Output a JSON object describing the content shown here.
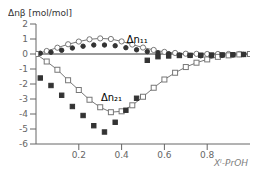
{
  "chart_data": {
    "type": "line",
    "y_label": "Δnβ [mol/mol]",
    "x_label": "Xᴵ-PrOH",
    "xlim": [
      0,
      1
    ],
    "ylim": [
      -6,
      2
    ],
    "xticks": [
      0.2,
      0.4,
      0.6,
      0.8
    ],
    "yticks": [
      -6,
      -5,
      -4,
      -3,
      -2,
      -1,
      0,
      1,
      2
    ],
    "grid": false,
    "hlines": [
      0
    ],
    "annotations": [
      {
        "text": "Δn₁₁",
        "x": 0.4,
        "y": 1.0
      },
      {
        "text": "Δn₂₁",
        "x": 0.28,
        "y": -2.9
      }
    ],
    "series": [
      {
        "type": "line",
        "marker": "open_circle",
        "color": "#777777",
        "x": [
          0.0,
          0.05,
          0.1,
          0.15,
          0.2,
          0.25,
          0.3,
          0.35,
          0.4,
          0.45,
          0.5,
          0.55,
          0.6,
          0.65,
          0.7,
          0.75,
          0.8,
          0.85,
          0.9,
          0.95,
          1.0
        ],
        "values": [
          0.0,
          0.2,
          0.42,
          0.65,
          0.83,
          0.98,
          1.04,
          1.0,
          0.84,
          0.63,
          0.43,
          0.27,
          0.14,
          0.07,
          0.02,
          0.01,
          0.0,
          0.0,
          0.0,
          0.0,
          0.0
        ]
      },
      {
        "type": "scatter",
        "marker": "circle",
        "color": "#333333",
        "x": [
          0.02,
          0.07,
          0.12,
          0.17,
          0.22,
          0.27,
          0.32,
          0.37,
          0.42,
          0.47,
          0.52,
          0.57,
          0.62,
          0.67,
          0.72,
          0.77,
          0.82,
          0.87,
          0.92,
          0.97
        ],
        "values": [
          0.05,
          0.12,
          0.25,
          0.4,
          0.52,
          0.6,
          0.6,
          0.55,
          0.42,
          0.28,
          0.16,
          0.08,
          0.02,
          -0.07,
          -0.1,
          -0.12,
          -0.11,
          -0.09,
          -0.06,
          -0.03
        ]
      },
      {
        "type": "line",
        "marker": "open_square",
        "color": "#777777",
        "x": [
          0.0,
          0.05,
          0.1,
          0.15,
          0.2,
          0.25,
          0.3,
          0.35,
          0.4,
          0.45,
          0.5,
          0.55,
          0.6,
          0.65,
          0.7,
          0.75,
          0.8,
          0.85,
          0.9,
          0.95,
          1.0
        ],
        "values": [
          0.0,
          -0.5,
          -1.05,
          -1.75,
          -2.4,
          -3.05,
          -3.55,
          -3.88,
          -3.82,
          -3.42,
          -2.85,
          -2.25,
          -1.7,
          -1.25,
          -0.87,
          -0.58,
          -0.36,
          -0.19,
          -0.09,
          -0.03,
          0.0
        ]
      },
      {
        "type": "scatter",
        "marker": "square",
        "color": "#333333",
        "x": [
          0.02,
          0.07,
          0.12,
          0.17,
          0.22,
          0.27,
          0.32,
          0.37,
          0.42,
          0.47,
          0.52,
          0.57,
          0.62,
          0.67,
          0.72,
          0.77,
          0.82,
          0.87,
          0.92,
          0.97
        ],
        "values": [
          -1.6,
          -2.1,
          -2.75,
          -3.5,
          -4.1,
          -4.78,
          -5.2,
          -4.55,
          -3.75,
          -2.95,
          -0.42,
          -0.18,
          -0.13,
          -0.1,
          -0.09,
          -0.08,
          -0.07,
          -0.06,
          -0.05,
          -0.03
        ]
      }
    ]
  }
}
